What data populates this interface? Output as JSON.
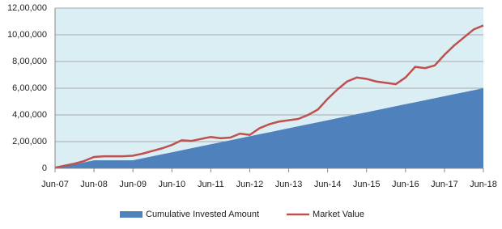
{
  "chart_data": {
    "type": "combo",
    "categories": [
      "Jun-07",
      null,
      null,
      null,
      "Jun-08",
      null,
      null,
      null,
      "Jun-09",
      null,
      null,
      null,
      "Jun-10",
      null,
      null,
      null,
      "Jun-11",
      null,
      null,
      null,
      "Jun-12",
      null,
      null,
      null,
      "Jun-13",
      null,
      null,
      null,
      "Jun-14",
      null,
      null,
      null,
      "Jun-15",
      null,
      null,
      null,
      "Jun-16",
      null,
      null,
      null,
      "Jun-17",
      null,
      null,
      null,
      "Jun-18"
    ],
    "series": [
      {
        "name": "Cumulative Invested Amount",
        "type": "area",
        "color": "#4f81bd",
        "values": [
          0,
          15000,
          30000,
          45000,
          60000,
          60000,
          60000,
          60000,
          60000,
          75000,
          90000,
          105000,
          120000,
          135000,
          150000,
          165000,
          180000,
          195000,
          210000,
          225000,
          240000,
          255000,
          270000,
          285000,
          300000,
          315000,
          330000,
          345000,
          360000,
          375000,
          390000,
          405000,
          420000,
          435000,
          450000,
          465000,
          480000,
          495000,
          510000,
          525000,
          540000,
          555000,
          570000,
          585000,
          600000
        ]
      },
      {
        "name": "Market Value",
        "type": "line",
        "color": "#c0504d",
        "values": [
          5000,
          20000,
          35000,
          55000,
          85000,
          90000,
          90000,
          90000,
          95000,
          110000,
          130000,
          150000,
          175000,
          210000,
          205000,
          220000,
          235000,
          225000,
          230000,
          260000,
          250000,
          300000,
          330000,
          350000,
          360000,
          370000,
          400000,
          440000,
          520000,
          590000,
          650000,
          680000,
          670000,
          650000,
          640000,
          630000,
          680000,
          760000,
          750000,
          770000,
          850000,
          920000,
          980000,
          1040000,
          1070000
        ]
      }
    ],
    "ylim": [
      0,
      1200000
    ],
    "yticks": [
      0,
      {
        "value": 200000,
        "label": "2,00,000"
      },
      {
        "value": 400000,
        "label": "4,00,000"
      },
      {
        "value": 600000,
        "label": "6,00,000"
      },
      {
        "value": 800000,
        "label": "8,00,000"
      },
      {
        "value": 1000000,
        "label": "10,00,000"
      },
      {
        "value": 1200000,
        "label": "12,00,000"
      }
    ],
    "grid": true,
    "plot_background": "#dbeef4",
    "legend": "bottom"
  }
}
